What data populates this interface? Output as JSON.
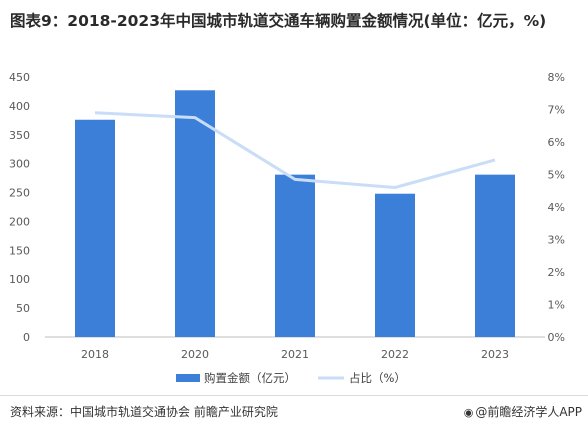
{
  "title": "图表9：2018-2023年中国城市轨道交通车辆购置金额情况(单位：亿元，%)",
  "source": "资料来源：中国城市轨道交通协会 前瞻产业研究院",
  "brand": "@前瞻经济学人APP",
  "brand_icon": "eye-logo-icon",
  "colors": {
    "bar": "#3b7fd9",
    "line": "#c9ddf6",
    "axis": "#bfbfbf",
    "text": "#595959"
  },
  "chart_data": {
    "type": "bar",
    "categories": [
      "2018",
      "2020",
      "2021",
      "2022",
      "2023"
    ],
    "series": [
      {
        "name": "购置金额（亿元）",
        "type": "bar",
        "axis": "left",
        "values": [
          376,
          427,
          281,
          248,
          281
        ]
      },
      {
        "name": "占比（%）",
        "type": "line",
        "axis": "right",
        "values": [
          6.9,
          6.75,
          4.85,
          4.6,
          5.45
        ]
      }
    ],
    "y_left": {
      "min": 0,
      "max": 450,
      "ticks": [
        "0",
        "50",
        "100",
        "150",
        "200",
        "250",
        "300",
        "350",
        "400",
        "450"
      ]
    },
    "y_right": {
      "min": 0,
      "max": 8,
      "ticks": [
        "0%",
        "1%",
        "2%",
        "3%",
        "4%",
        "5%",
        "6%",
        "7%",
        "8%"
      ]
    },
    "grid": false,
    "legend": "bottom"
  }
}
